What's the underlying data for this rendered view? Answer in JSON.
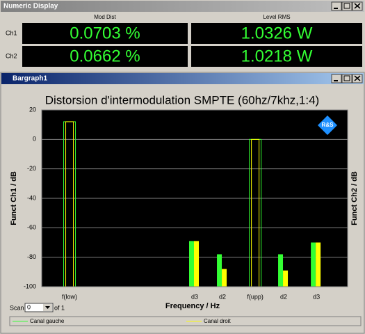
{
  "numeric_display": {
    "title": "Numeric Display",
    "columns": [
      "Mod Dist",
      "Level RMS"
    ],
    "rows": [
      {
        "label": "Ch1",
        "values": [
          "0.0703 %",
          "1.0326 W"
        ]
      },
      {
        "label": "Ch2",
        "values": [
          "0.0662 %",
          "1.0218 W"
        ]
      }
    ]
  },
  "bargraph": {
    "title": "Bargraph1",
    "scan_label": "Scan",
    "scan_value": "0",
    "scan_of": "of 1"
  },
  "chart_data": {
    "type": "bar",
    "title": "Distorsion d'intermodulation SMPTE (60hz/7khz,1:4)",
    "x_label": "Frequency / Hz",
    "y_label": "Funct Ch1 / dB",
    "y2_label": "Funct Ch2 / dB",
    "logo": "R&S",
    "categories": [
      "f(low)",
      "d3",
      "d2",
      "f(upp)",
      "d2",
      "d3"
    ],
    "series": [
      {
        "name": "Canal gauche",
        "color": "#33ff33",
        "values": [
          12,
          -69,
          -78,
          0,
          -78,
          -70
        ]
      },
      {
        "name": "Canal droit",
        "color": "#ffff00",
        "values": [
          12,
          -69,
          -88,
          0,
          -89,
          -70
        ]
      }
    ],
    "ylim": [
      -100,
      20
    ],
    "yticks": [
      20,
      0,
      -20,
      -40,
      -60,
      -80,
      -100
    ],
    "grid": true
  }
}
